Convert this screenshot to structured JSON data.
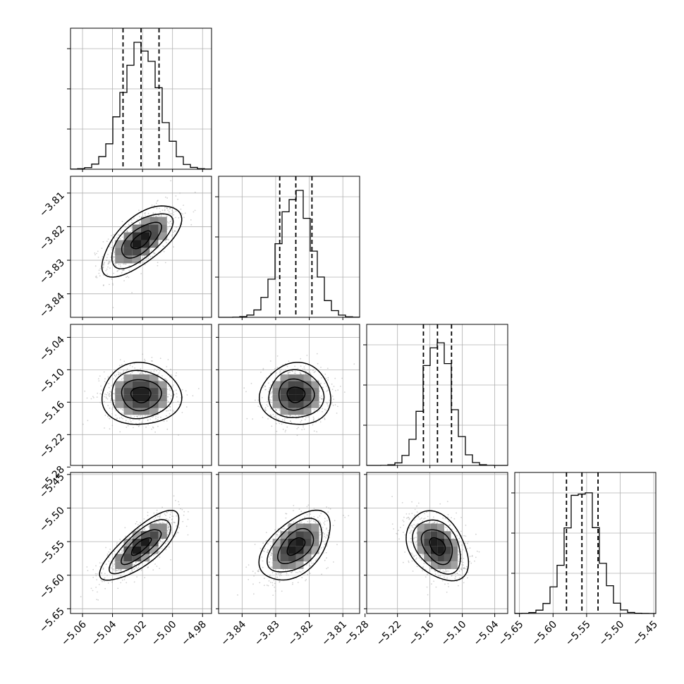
{
  "chart_data": {
    "type": "corner",
    "grid": true,
    "parameters": [
      {
        "ticks": [
          -5.06,
          -5.04,
          -5.02,
          -5.0,
          -4.98
        ],
        "tick_labels": [
          "−5.06",
          "−5.04",
          "−5.02",
          "−5.00",
          "−4.98"
        ],
        "range": [
          -5.068,
          -4.974
        ],
        "quantiles": [
          -5.033,
          -5.021,
          -5.009
        ]
      },
      {
        "ticks": [
          -3.84,
          -3.83,
          -3.82,
          -3.81
        ],
        "tick_labels": [
          "−3.84",
          "−3.83",
          "−3.82",
          "−3.81"
        ],
        "range": [
          -3.847,
          -3.805
        ],
        "quantiles": [
          -3.8288,
          -3.824,
          -3.8192
        ]
      },
      {
        "ticks": [
          -5.28,
          -5.22,
          -5.16,
          -5.1,
          -5.04
        ],
        "tick_labels": [
          "−5.28",
          "−5.22",
          "−5.16",
          "−5.10",
          "−5.04"
        ],
        "range": [
          -5.277,
          -5.016
        ],
        "quantiles": [
          -5.172,
          -5.146,
          -5.12
        ]
      },
      {
        "ticks": [
          -5.65,
          -5.6,
          -5.55,
          -5.5,
          -5.45
        ],
        "tick_labels": [
          "−5.65",
          "−5.60",
          "−5.55",
          "−5.50",
          "−5.45"
        ],
        "range": [
          -5.657,
          -5.447
        ],
        "quantiles": [
          -5.58,
          -5.557,
          -5.533
        ]
      }
    ],
    "correlations": [
      {
        "x": 0,
        "y": 1,
        "rho": 0.65
      },
      {
        "x": 0,
        "y": 2,
        "rho": 0.0
      },
      {
        "x": 1,
        "y": 2,
        "rho": 0.0
      },
      {
        "x": 0,
        "y": 3,
        "rho": 0.78
      },
      {
        "x": 1,
        "y": 3,
        "rho": 0.5
      },
      {
        "x": 2,
        "y": 3,
        "rho": -0.35
      }
    ]
  }
}
